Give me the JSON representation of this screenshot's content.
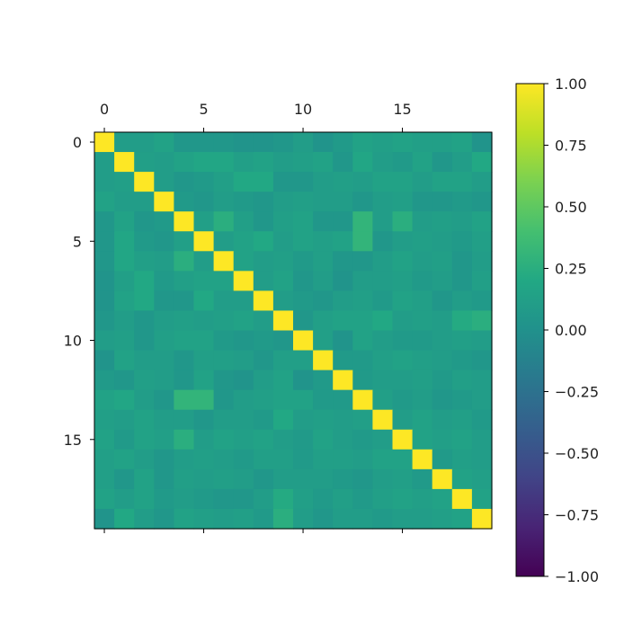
{
  "chart_data": {
    "type": "heatmap",
    "title": "",
    "xlabel": "",
    "ylabel": "",
    "n": 20,
    "x_ticks": [
      0,
      5,
      10,
      15
    ],
    "y_ticks": [
      0,
      5,
      10,
      15
    ],
    "x_tick_labels": [
      "0",
      "5",
      "10",
      "15"
    ],
    "y_tick_labels": [
      "0",
      "5",
      "10",
      "15"
    ],
    "x_axis_position": "top",
    "colormap": "viridis",
    "vmin": -1,
    "vmax": 1,
    "colorbar": {
      "ticks": [
        1.0,
        0.75,
        0.5,
        0.25,
        0.0,
        -0.25,
        -0.5,
        -0.75,
        -1.0
      ],
      "tick_labels": [
        "1.00",
        "0.75",
        "0.50",
        "0.25",
        "0.00",
        "−0.25",
        "−0.50",
        "−0.75",
        "−1.00"
      ]
    },
    "matrix": [
      [
        1.0,
        0.1,
        0.1,
        0.15,
        0.05,
        0.05,
        0.05,
        0.03,
        0.03,
        0.05,
        0.1,
        0.03,
        0.08,
        0.15,
        0.12,
        0.15,
        0.12,
        0.12,
        0.15,
        0.03
      ],
      [
        0.1,
        1.0,
        0.12,
        0.1,
        0.15,
        0.18,
        0.18,
        0.12,
        0.15,
        0.1,
        0.12,
        0.15,
        0.05,
        0.18,
        0.1,
        0.08,
        0.15,
        0.05,
        0.1,
        0.2
      ],
      [
        0.1,
        0.12,
        1.0,
        0.1,
        0.05,
        0.08,
        0.12,
        0.2,
        0.2,
        0.05,
        0.05,
        0.1,
        0.12,
        0.1,
        0.15,
        0.15,
        0.1,
        0.15,
        0.15,
        0.1
      ],
      [
        0.15,
        0.1,
        0.1,
        1.0,
        0.08,
        0.05,
        0.1,
        0.08,
        0.05,
        0.1,
        0.12,
        0.1,
        0.1,
        0.05,
        0.1,
        0.12,
        0.05,
        0.05,
        0.08,
        0.05
      ],
      [
        0.05,
        0.15,
        0.05,
        0.08,
        1.0,
        0.12,
        0.25,
        0.12,
        0.05,
        0.12,
        0.15,
        0.05,
        0.05,
        0.3,
        0.1,
        0.25,
        0.1,
        0.12,
        0.1,
        0.15
      ],
      [
        0.05,
        0.18,
        0.08,
        0.05,
        0.12,
        1.0,
        0.1,
        0.15,
        0.2,
        0.1,
        0.15,
        0.12,
        0.15,
        0.3,
        0.05,
        0.1,
        0.12,
        0.1,
        0.08,
        0.12
      ],
      [
        0.05,
        0.18,
        0.12,
        0.1,
        0.25,
        0.1,
        1.0,
        0.15,
        0.1,
        0.12,
        0.08,
        0.12,
        0.05,
        0.05,
        0.1,
        0.15,
        0.1,
        0.12,
        0.05,
        0.1
      ],
      [
        0.03,
        0.12,
        0.2,
        0.08,
        0.12,
        0.15,
        0.15,
        1.0,
        0.1,
        0.15,
        0.05,
        0.1,
        0.03,
        0.1,
        0.1,
        0.12,
        0.08,
        0.1,
        0.05,
        0.12
      ],
      [
        0.03,
        0.15,
        0.2,
        0.05,
        0.05,
        0.2,
        0.1,
        0.1,
        1.0,
        0.1,
        0.08,
        0.05,
        0.1,
        0.12,
        0.08,
        0.15,
        0.12,
        0.05,
        0.1,
        0.08
      ],
      [
        0.05,
        0.1,
        0.05,
        0.1,
        0.12,
        0.1,
        0.12,
        0.15,
        0.1,
        1.0,
        0.05,
        0.12,
        0.15,
        0.15,
        0.2,
        0.1,
        0.12,
        0.1,
        0.22,
        0.25
      ],
      [
        0.1,
        0.12,
        0.05,
        0.12,
        0.15,
        0.15,
        0.08,
        0.05,
        0.08,
        0.05,
        1.0,
        0.12,
        0.03,
        0.15,
        0.1,
        0.08,
        0.08,
        0.1,
        0.12,
        0.1
      ],
      [
        0.03,
        0.15,
        0.1,
        0.1,
        0.05,
        0.12,
        0.12,
        0.1,
        0.05,
        0.12,
        0.12,
        1.0,
        0.08,
        0.08,
        0.12,
        0.15,
        0.12,
        0.1,
        0.08,
        0.05
      ],
      [
        0.08,
        0.05,
        0.12,
        0.1,
        0.05,
        0.15,
        0.05,
        0.03,
        0.1,
        0.15,
        0.03,
        0.08,
        1.0,
        0.08,
        0.1,
        0.1,
        0.12,
        0.08,
        0.12,
        0.1
      ],
      [
        0.15,
        0.18,
        0.1,
        0.05,
        0.3,
        0.3,
        0.05,
        0.1,
        0.12,
        0.15,
        0.15,
        0.08,
        0.08,
        1.0,
        0.12,
        0.08,
        0.1,
        0.05,
        0.08,
        0.1
      ],
      [
        0.12,
        0.1,
        0.15,
        0.1,
        0.1,
        0.05,
        0.1,
        0.1,
        0.08,
        0.2,
        0.1,
        0.12,
        0.1,
        0.12,
        1.0,
        0.1,
        0.15,
        0.1,
        0.12,
        0.08
      ],
      [
        0.15,
        0.08,
        0.15,
        0.12,
        0.25,
        0.1,
        0.15,
        0.12,
        0.15,
        0.1,
        0.08,
        0.15,
        0.1,
        0.08,
        0.1,
        1.0,
        0.15,
        0.12,
        0.15,
        0.1
      ],
      [
        0.12,
        0.15,
        0.1,
        0.05,
        0.1,
        0.12,
        0.1,
        0.08,
        0.12,
        0.12,
        0.08,
        0.12,
        0.12,
        0.1,
        0.15,
        0.15,
        1.0,
        0.08,
        0.12,
        0.1
      ],
      [
        0.12,
        0.05,
        0.15,
        0.05,
        0.12,
        0.1,
        0.12,
        0.1,
        0.05,
        0.1,
        0.1,
        0.1,
        0.08,
        0.05,
        0.1,
        0.12,
        0.08,
        1.0,
        0.15,
        0.12
      ],
      [
        0.15,
        0.1,
        0.15,
        0.08,
        0.1,
        0.08,
        0.05,
        0.05,
        0.1,
        0.22,
        0.12,
        0.08,
        0.12,
        0.08,
        0.12,
        0.15,
        0.12,
        0.15,
        1.0,
        0.15
      ],
      [
        0.03,
        0.2,
        0.1,
        0.05,
        0.15,
        0.12,
        0.1,
        0.12,
        0.08,
        0.25,
        0.1,
        0.05,
        0.1,
        0.1,
        0.08,
        0.1,
        0.1,
        0.12,
        0.15,
        1.0
      ]
    ]
  }
}
